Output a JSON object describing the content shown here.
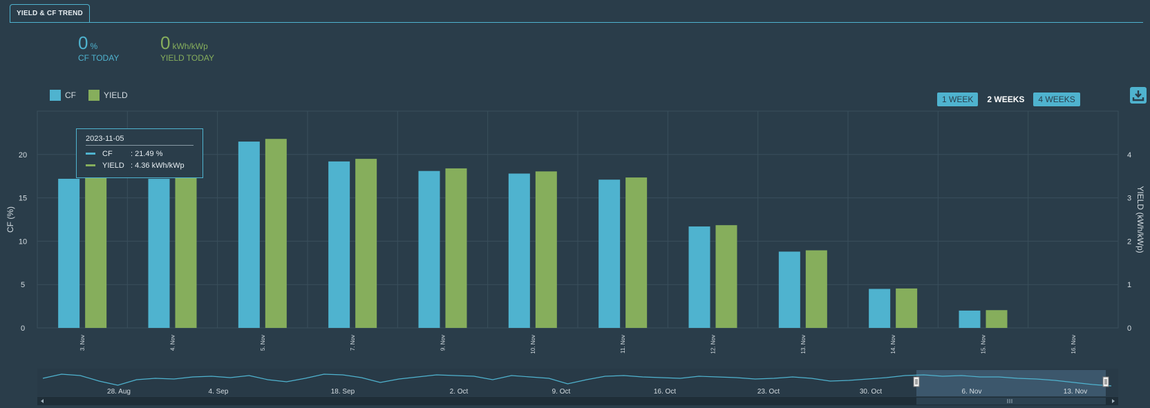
{
  "tab": {
    "label": "YIELD & CF TREND"
  },
  "kpis": {
    "cf": {
      "value": "0",
      "unit": "%",
      "label": "CF TODAY"
    },
    "yield": {
      "value": "0",
      "unit": "kWh/kWp",
      "label": "YIELD TODAY"
    }
  },
  "legend": [
    {
      "label": "CF",
      "color": "#4fb3cf"
    },
    {
      "label": "YIELD",
      "color": "#86ae5c"
    }
  ],
  "range_buttons": [
    {
      "label": "1 WEEK",
      "active": false
    },
    {
      "label": "2 WEEKS",
      "active": true
    },
    {
      "label": "4 WEEKS",
      "active": false
    }
  ],
  "download_icon": "download-icon",
  "tooltip": {
    "date": "2023-11-05",
    "rows": [
      {
        "name": "CF",
        "value": ": 21.49 %",
        "color": "#4fb3cf"
      },
      {
        "name": "YIELD",
        "value": ": 4.36 kWh/kWp",
        "color": "#86ae5c"
      }
    ]
  },
  "chart_data": {
    "type": "bar",
    "categories": [
      "3. Nov",
      "4. Nov",
      "5. Nov",
      "7. Nov",
      "9. Nov",
      "10. Nov",
      "11. Nov",
      "12. Nov",
      "13. Nov",
      "14. Nov",
      "15. Nov",
      "16. Nov"
    ],
    "series": [
      {
        "name": "CF",
        "axis": "left",
        "color": "#4fb3cf",
        "values": [
          17.2,
          17.2,
          21.49,
          19.2,
          18.1,
          17.8,
          17.1,
          11.7,
          8.8,
          4.5,
          2.0,
          0
        ]
      },
      {
        "name": "YIELD",
        "axis": "right",
        "color": "#86ae5c",
        "values": [
          3.49,
          3.49,
          4.36,
          3.9,
          3.68,
          3.61,
          3.47,
          2.37,
          1.79,
          0.91,
          0.41,
          0
        ]
      }
    ],
    "ylabel": "CF (%)",
    "ylabel_right": "YIELD (kWh/kWp)",
    "y_ticks": [
      0,
      5,
      10,
      15,
      20
    ],
    "y_ticks_right": [
      0,
      1,
      2,
      3,
      4
    ],
    "ylim": [
      0,
      25
    ],
    "ylim_right": [
      0,
      5
    ],
    "grid": true,
    "legend_position": "top-left",
    "navigator": {
      "labels": [
        "28. Aug",
        "4. Sep",
        "18. Sep",
        "2. Oct",
        "9. Oct",
        "16. Oct",
        "23. Oct",
        "30. Oct",
        "6. Nov",
        "13. Nov"
      ],
      "series": [
        0.6,
        0.9,
        0.8,
        0.4,
        0.1,
        0.5,
        0.6,
        0.55,
        0.7,
        0.75,
        0.65,
        0.8,
        0.5,
        0.35,
        0.6,
        0.9,
        0.85,
        0.65,
        0.3,
        0.55,
        0.7,
        0.85,
        0.8,
        0.75,
        0.5,
        0.8,
        0.7,
        0.6,
        0.2,
        0.5,
        0.75,
        0.8,
        0.7,
        0.65,
        0.6,
        0.75,
        0.7,
        0.65,
        0.55,
        0.6,
        0.7,
        0.6,
        0.4,
        0.45,
        0.55,
        0.65,
        0.8,
        0.85,
        0.75,
        0.8,
        0.7,
        0.7,
        0.6,
        0.55,
        0.45,
        0.3,
        0.15,
        0.05
      ]
    }
  }
}
